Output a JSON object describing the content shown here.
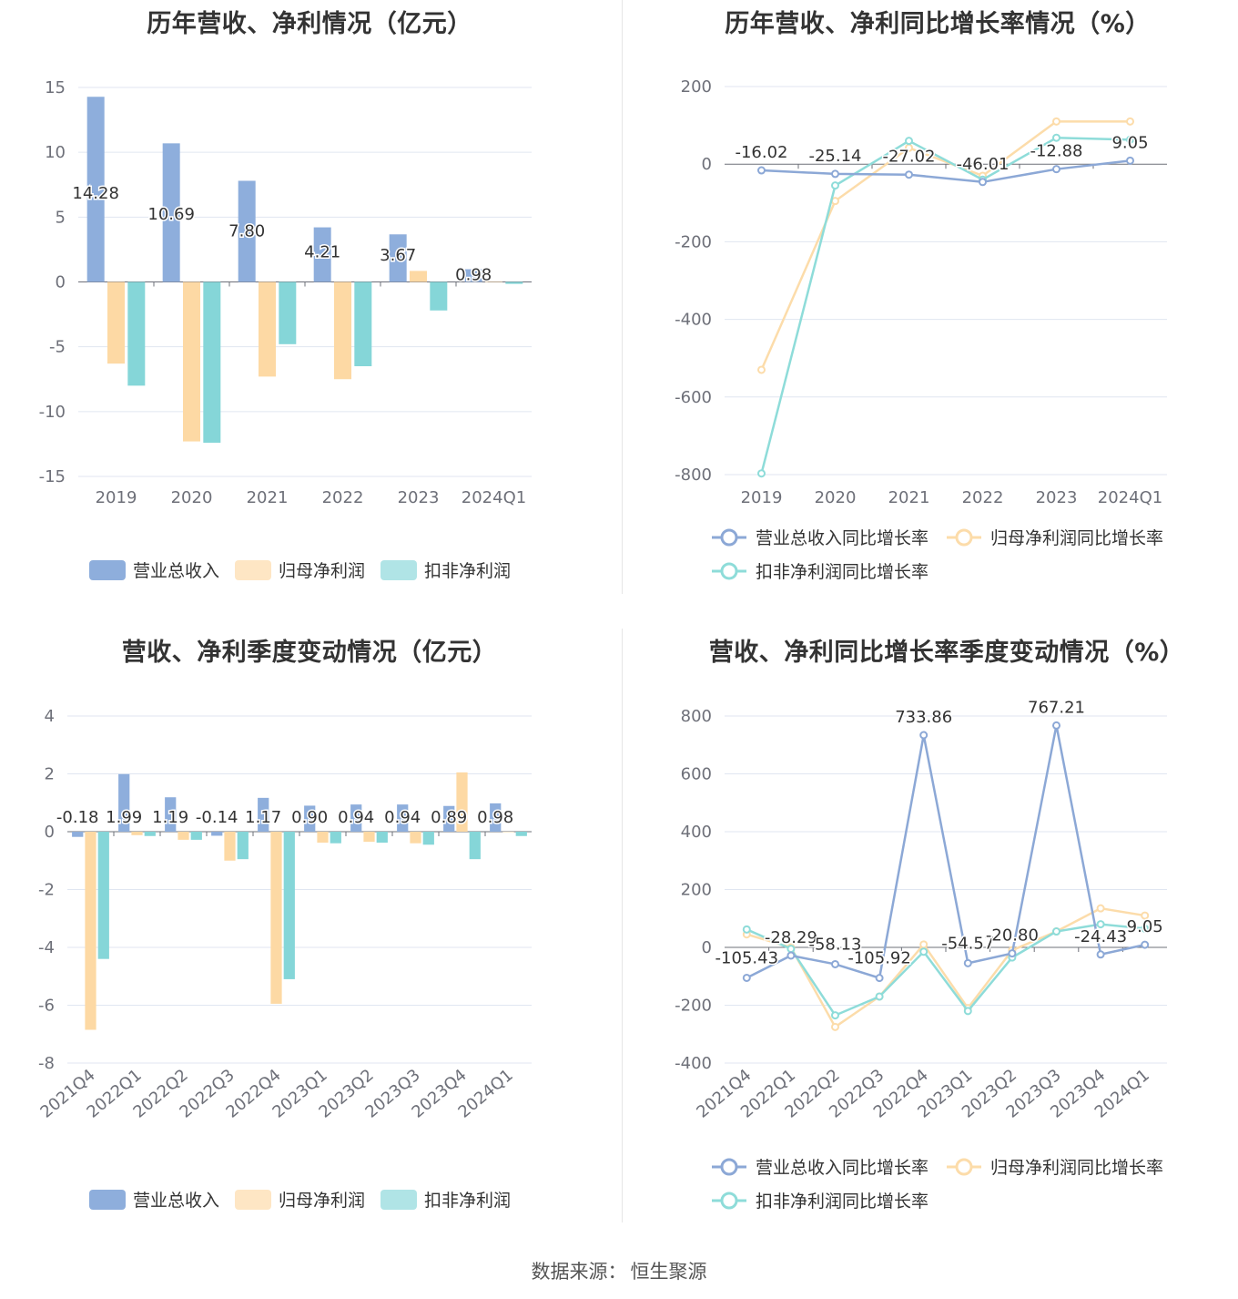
{
  "footer": {
    "source_label": "数据来源：",
    "source_name": "恒生聚源"
  },
  "colors": {
    "revenue": "#8eaedc",
    "net_profit": "#fdd9a4",
    "deducted_profit": "#85d6d8",
    "grid": "#e0e6f1",
    "axis": "#6e7079"
  },
  "chart_data": [
    {
      "type": "bar",
      "title": "历年营收、净利情况（亿元）",
      "categories": [
        "2019",
        "2020",
        "2021",
        "2022",
        "2023",
        "2024Q1"
      ],
      "ylim": [
        -15,
        15
      ],
      "yticks": [
        15,
        10,
        5,
        0,
        -5,
        -10,
        -15
      ],
      "series": [
        {
          "name": "营业总收入",
          "values": [
            14.28,
            10.69,
            7.8,
            4.21,
            3.67,
            0.98
          ],
          "labels": [
            "14.28",
            "10.69",
            "7.80",
            "4.21",
            "3.67",
            "0.98"
          ]
        },
        {
          "name": "归母净利润",
          "values": [
            -6.3,
            -12.3,
            -7.3,
            -7.5,
            0.85,
            0.0
          ]
        },
        {
          "name": "扣非净利润",
          "values": [
            -8.0,
            -12.4,
            -4.8,
            -6.5,
            -2.2,
            -0.15
          ]
        }
      ],
      "legend": [
        "营业总收入",
        "归母净利润",
        "扣非净利润"
      ]
    },
    {
      "type": "line",
      "title": "历年营收、净利同比增长率情况（%）",
      "categories": [
        "2019",
        "2020",
        "2021",
        "2022",
        "2023",
        "2024Q1"
      ],
      "ylim": [
        -800,
        200
      ],
      "yticks": [
        200,
        0,
        -200,
        -400,
        -600,
        -800
      ],
      "series": [
        {
          "name": "营业总收入同比增长率",
          "values": [
            -16.02,
            -25.14,
            -27.02,
            -46.01,
            -12.88,
            9.05
          ],
          "labels": [
            "-16.02",
            "-25.14",
            "-27.02",
            "-46.01",
            "-12.88",
            "9.05"
          ]
        },
        {
          "name": "归母净利润同比增长率",
          "values": [
            -530,
            -95,
            42,
            -30,
            110,
            110
          ]
        },
        {
          "name": "扣非净利润同比增长率",
          "values": [
            -797,
            -55,
            60,
            -40,
            68,
            63
          ]
        }
      ],
      "legend": [
        "营业总收入同比增长率",
        "归母净利润同比增长率",
        "扣非净利润同比增长率"
      ]
    },
    {
      "type": "bar",
      "title": "营收、净利季度变动情况（亿元）",
      "categories": [
        "2021Q4",
        "2022Q1",
        "2022Q2",
        "2022Q3",
        "2022Q4",
        "2023Q1",
        "2023Q2",
        "2023Q3",
        "2023Q4",
        "2024Q1"
      ],
      "ylim": [
        -8,
        4
      ],
      "yticks": [
        4,
        2,
        0,
        -2,
        -4,
        -6,
        -8
      ],
      "series": [
        {
          "name": "营业总收入",
          "values": [
            -0.18,
            1.99,
            1.19,
            -0.14,
            1.17,
            0.9,
            0.94,
            0.94,
            0.89,
            0.98
          ],
          "labels": [
            "-0.18",
            "1.99",
            "1.19",
            "-0.14",
            "1.17",
            "0.90",
            "0.94",
            "0.94",
            "0.89",
            "0.98"
          ]
        },
        {
          "name": "归母净利润",
          "values": [
            -6.85,
            -0.12,
            -0.28,
            -1.0,
            -5.95,
            -0.38,
            -0.35,
            -0.4,
            2.05,
            0.0
          ]
        },
        {
          "name": "扣非净利润",
          "values": [
            -4.4,
            -0.15,
            -0.28,
            -0.95,
            -5.1,
            -0.4,
            -0.38,
            -0.45,
            -0.95,
            -0.15
          ]
        }
      ],
      "legend": [
        "营业总收入",
        "归母净利润",
        "扣非净利润"
      ]
    },
    {
      "type": "line",
      "title": "营收、净利同比增长率季度变动情况（%）",
      "categories": [
        "2021Q4",
        "2022Q1",
        "2022Q2",
        "2022Q3",
        "2022Q4",
        "2023Q1",
        "2023Q2",
        "2023Q3",
        "2023Q4",
        "2024Q1"
      ],
      "ylim": [
        -400,
        800
      ],
      "yticks": [
        800,
        600,
        400,
        200,
        0,
        -200,
        -400
      ],
      "series": [
        {
          "name": "营业总收入同比增长率",
          "values": [
            -105.43,
            -28.29,
            -58.13,
            -105.92,
            733.86,
            -54.57,
            -20.8,
            767.21,
            -24.43,
            9.05
          ],
          "labels": [
            "-105.43",
            "-28.29",
            "-58.13",
            "-105.92",
            "733.86",
            "-54.57",
            "-20.80",
            "767.21",
            "-24.43",
            "9.05"
          ]
        },
        {
          "name": "归母净利润同比增长率",
          "values": [
            45,
            0,
            -275,
            -170,
            10,
            -210,
            -10,
            55,
            135,
            110
          ]
        },
        {
          "name": "扣非净利润同比增长率",
          "values": [
            62,
            -5,
            -235,
            -170,
            -15,
            -220,
            -35,
            55,
            80,
            65
          ]
        }
      ],
      "legend": [
        "营业总收入同比增长率",
        "归母净利润同比增长率",
        "扣非净利润同比增长率"
      ]
    }
  ]
}
